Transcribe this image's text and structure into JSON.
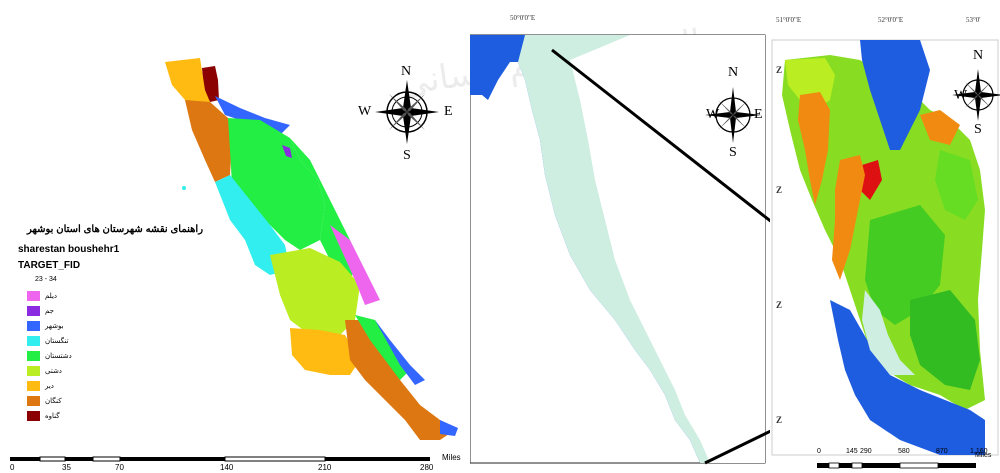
{
  "watermark": {
    "text": "پرتال جامع علوم انسانی"
  },
  "left_map": {
    "legend": {
      "title": "راهنمای نقشه شهرستان های استان بوشهر",
      "layer_name": "sharestan boushehr1",
      "field_name": "TARGET_FID",
      "range": "23 - 34",
      "items": [
        {
          "label": "دیلم",
          "color": "#ee66ee"
        },
        {
          "label": "جم",
          "color": "#8a2be2"
        },
        {
          "label": "بوشهر",
          "color": "#3366ff"
        },
        {
          "label": "تنگستان",
          "color": "#33eeee"
        },
        {
          "label": "دشتستان",
          "color": "#22ee44"
        },
        {
          "label": "دشتی",
          "color": "#bbee22"
        },
        {
          "label": "دیر",
          "color": "#ffbb11"
        },
        {
          "label": "کنگان",
          "color": "#dd7711"
        },
        {
          "label": "گناوه",
          "color": "#8b0000"
        }
      ]
    },
    "compass": {
      "n": "N",
      "s": "S",
      "e": "E",
      "w": "W"
    },
    "scale": {
      "ticks": [
        "0",
        "35",
        "70",
        "140",
        "210",
        "280"
      ],
      "unit": "Miles"
    }
  },
  "middle_map": {
    "top_coord": "50°0'0\"E",
    "compass": {
      "n": "N",
      "s": "S",
      "e": "E",
      "w": "W"
    },
    "colors": {
      "sea": "#1e5ce0",
      "land": "#cdeee0"
    }
  },
  "right_map": {
    "top_coords": [
      "51°0'0\"E",
      "52°0'0\"E",
      "53°0'"
    ],
    "side_coords": [
      "Z",
      "Z",
      "Z",
      "Z"
    ],
    "compass": {
      "n": "N",
      "s": "S",
      "e": "E",
      "w": "W"
    },
    "scale": {
      "ticks": [
        "0",
        "145",
        "290",
        "580",
        "870",
        "1,160"
      ],
      "unit": "Miles"
    }
  }
}
